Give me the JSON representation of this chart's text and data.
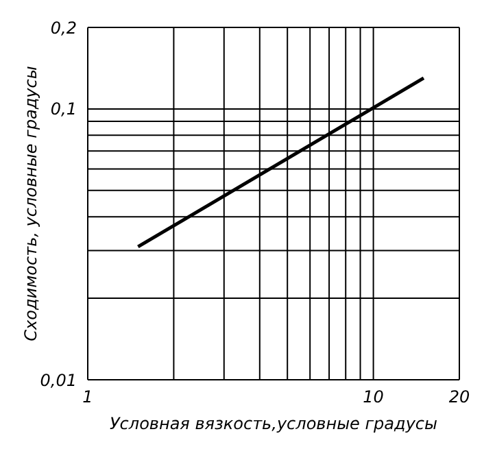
{
  "chart_data": {
    "type": "line",
    "xlabel": "Условная вязкость,условные градусы",
    "ylabel": "Сходимость, условные градусы",
    "log": "xy",
    "grid": true,
    "xlim": [
      1,
      20
    ],
    "ylim": [
      0.01,
      0.2
    ],
    "xticks": [
      1,
      {
        "value": 2,
        "label": null
      },
      {
        "value": 3,
        "label": null
      },
      {
        "value": 4,
        "label": null
      },
      {
        "value": 5,
        "label": null
      },
      {
        "value": 6,
        "label": null
      },
      {
        "value": 7,
        "label": null
      },
      {
        "value": 8,
        "label": null
      },
      {
        "value": 9,
        "label": null
      },
      10,
      20
    ],
    "yticks": [
      {
        "value": 0.01,
        "label": "0,01"
      },
      {
        "value": 0.02,
        "label": null
      },
      {
        "value": 0.03,
        "label": null
      },
      {
        "value": 0.04,
        "label": null
      },
      {
        "value": 0.05,
        "label": null
      },
      {
        "value": 0.06,
        "label": null
      },
      {
        "value": 0.07,
        "label": null
      },
      {
        "value": 0.08,
        "label": null
      },
      {
        "value": 0.09,
        "label": null
      },
      {
        "value": 0.1,
        "label": "0,1"
      },
      {
        "value": 0.2,
        "label": "0,2"
      }
    ],
    "x": [
      1.5,
      15
    ],
    "series": [
      {
        "color": "#000000",
        "values": [
          0.031,
          0.13
        ]
      }
    ]
  }
}
